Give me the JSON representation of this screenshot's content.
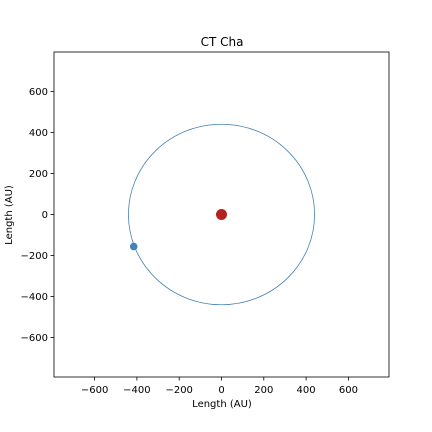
{
  "chart_data": {
    "type": "scatter",
    "title": "CT Cha",
    "xlabel": "Length (AU)",
    "ylabel": "Length (AU)",
    "xlim": [
      -792,
      792
    ],
    "ylim": [
      -792,
      792
    ],
    "xticks": [
      -600,
      -400,
      -200,
      0,
      200,
      400,
      600
    ],
    "yticks": [
      -600,
      -400,
      -200,
      0,
      200,
      400,
      600
    ],
    "grid": false,
    "series": [
      {
        "kind": "orbit",
        "radius": 440,
        "center": [
          0,
          0
        ],
        "color": "#4682b4"
      },
      {
        "kind": "star",
        "x": 0,
        "y": 0,
        "color": "#b22222"
      },
      {
        "kind": "companion",
        "x": -415,
        "y": -156,
        "color": "#4682b4"
      }
    ]
  }
}
